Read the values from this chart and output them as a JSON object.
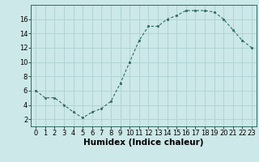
{
  "x": [
    0,
    1,
    2,
    3,
    4,
    5,
    6,
    7,
    8,
    9,
    10,
    11,
    12,
    13,
    14,
    15,
    16,
    17,
    18,
    19,
    20,
    21,
    22,
    23
  ],
  "y": [
    6,
    5,
    5,
    4,
    3,
    2.2,
    3,
    3.5,
    4.5,
    7,
    10,
    13,
    15,
    15,
    16,
    16.5,
    17.2,
    17.2,
    17.2,
    17,
    16,
    14.5,
    13,
    12
  ],
  "line_color": "#2e6b5e",
  "marker": "s",
  "marker_size": 2,
  "background_color": "#cce8e8",
  "grid_color": "#b0d4d4",
  "title": "",
  "xlabel": "Humidex (Indice chaleur)",
  "ylabel": "",
  "xlim": [
    -0.5,
    23.5
  ],
  "ylim": [
    1,
    18
  ],
  "yticks": [
    2,
    4,
    6,
    8,
    10,
    12,
    14,
    16
  ],
  "xticks": [
    0,
    1,
    2,
    3,
    4,
    5,
    6,
    7,
    8,
    9,
    10,
    11,
    12,
    13,
    14,
    15,
    16,
    17,
    18,
    19,
    20,
    21,
    22,
    23
  ],
  "tick_fontsize": 6,
  "xlabel_fontsize": 7.5
}
